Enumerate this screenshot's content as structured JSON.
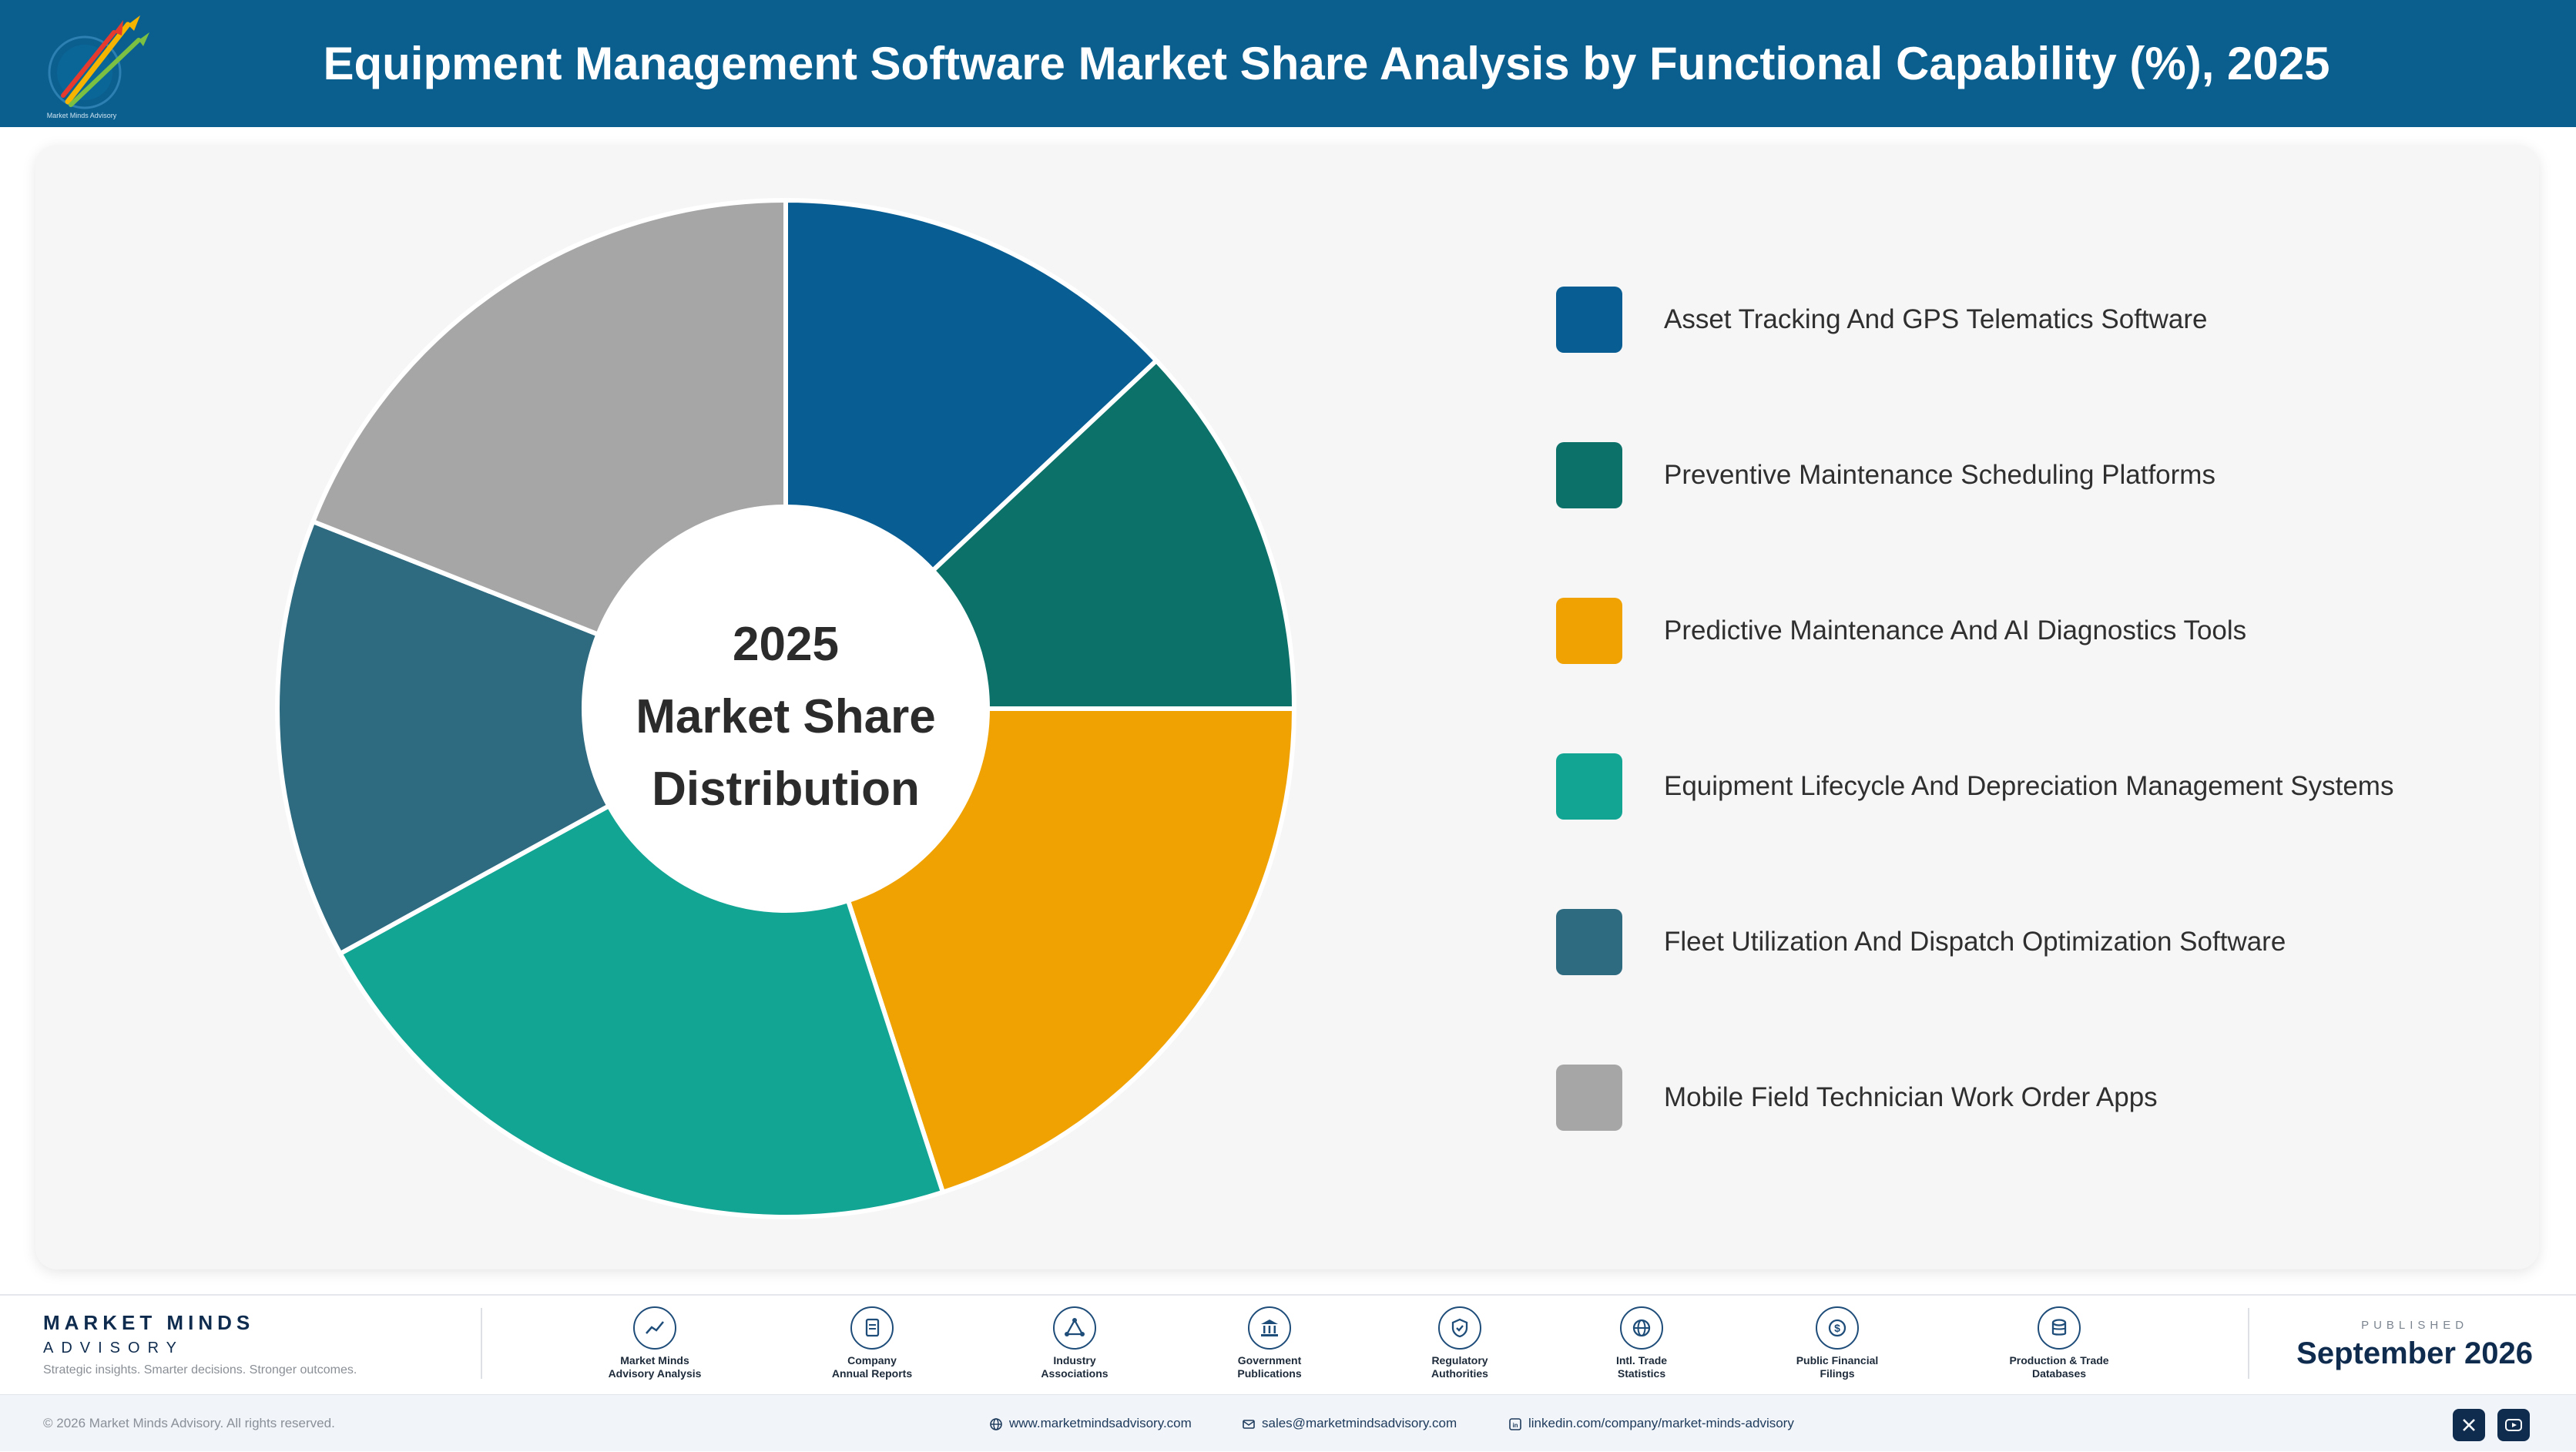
{
  "header": {
    "title": "Equipment Management Software Market Share Analysis by Functional Capability (%), 2025"
  },
  "chart_data": {
    "type": "donut",
    "title": "Equipment Management Software Market Share Analysis by Functional Capability (%), 2025",
    "center_label": [
      "2025",
      "Market Share",
      "Distribution"
    ],
    "start_angle_deg": 0,
    "direction": "clockwise",
    "legend_position": "right",
    "slices": [
      {
        "label": "Asset Tracking And GPS Telematics Software",
        "value": 13,
        "color": "#085e93"
      },
      {
        "label": "Preventive Maintenance Scheduling Platforms",
        "value": 12,
        "color": "#0b7169"
      },
      {
        "label": "Predictive Maintenance And AI Diagnostics Tools",
        "value": 20,
        "color": "#f0a202"
      },
      {
        "label": "Equipment Lifecycle And Depreciation Management Systems",
        "value": 22,
        "color": "#12a593"
      },
      {
        "label": "Fleet Utilization And Dispatch Optimization Software",
        "value": 14,
        "color": "#2e6b80"
      },
      {
        "label": "Mobile Field Technician Work Order Apps",
        "value": 19,
        "color": "#a6a6a6"
      }
    ]
  },
  "footer": {
    "brand_name": "MARKET MINDS",
    "brand_sub": "ADVISORY",
    "brand_tagline": "Strategic insights. Smarter decisions. Stronger outcomes.",
    "sources": [
      {
        "label1": "Market Minds",
        "label2": "Advisory Analysis",
        "icon": "chart-line-icon"
      },
      {
        "label1": "Company",
        "label2": "Annual Reports",
        "icon": "document-icon"
      },
      {
        "label1": "Industry",
        "label2": "Associations",
        "icon": "network-icon"
      },
      {
        "label1": "Government",
        "label2": "Publications",
        "icon": "government-building-icon"
      },
      {
        "label1": "Regulatory",
        "label2": "Authorities",
        "icon": "shield-check-icon"
      },
      {
        "label1": "Intl. Trade",
        "label2": "Statistics",
        "icon": "globe-icon"
      },
      {
        "label1": "Public Financial",
        "label2": "Filings",
        "icon": "dollar-coin-icon"
      },
      {
        "label1": "Production & Trade",
        "label2": "Databases",
        "icon": "database-icon"
      }
    ],
    "published_label": "PUBLISHED",
    "published_date": "September 2026",
    "copyright": "© 2026 Market Minds Advisory. All rights reserved.",
    "website": "www.marketmindsadvisory.com",
    "email": "sales@marketmindsadvisory.com",
    "linkedin": "linkedin.com/company/market-minds-advisory"
  },
  "colors": {
    "header_bg": "#0a5f8f",
    "card_bg": "#f6f6f7",
    "brand_navy": "#0f2c4f"
  }
}
